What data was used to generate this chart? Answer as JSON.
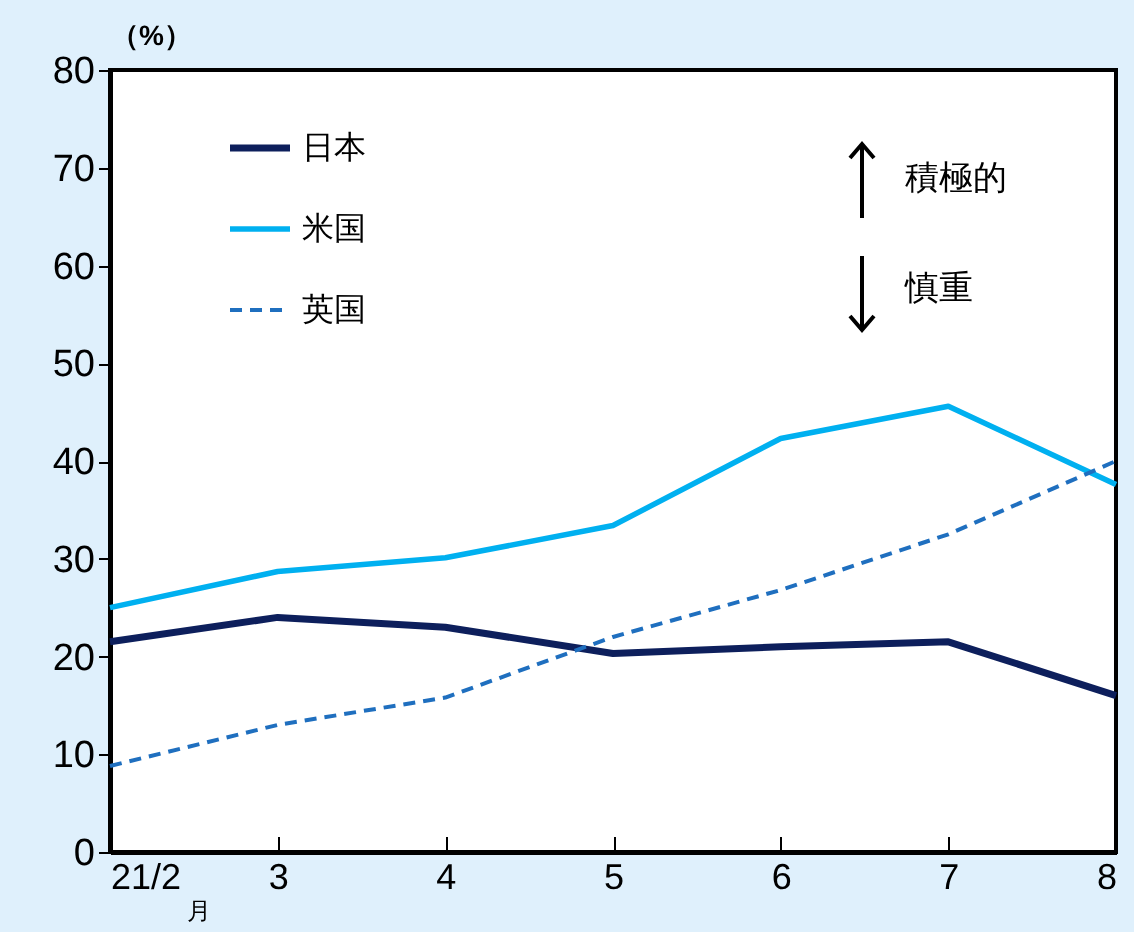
{
  "chart_data": {
    "type": "line",
    "ylabel": "（%）",
    "xlabel": "月",
    "categories": [
      "21/2",
      "3",
      "4",
      "5",
      "6",
      "7",
      "8"
    ],
    "series": [
      {
        "name": "日本",
        "color": "#0d1f5c",
        "line_style": "solid",
        "values": [
          21.5,
          24,
          23,
          20.3,
          21,
          21.5,
          16
        ]
      },
      {
        "name": "米国",
        "color": "#00b0f0",
        "line_style": "solid",
        "values": [
          25,
          28.7,
          30.1,
          33.4,
          42.3,
          45.6,
          37.6
        ]
      },
      {
        "name": "英国",
        "color": "#1f6fbf",
        "line_style": "dashed",
        "values": [
          8.8,
          13,
          15.8,
          22,
          26.8,
          32.5,
          40
        ]
      }
    ],
    "ylim": [
      0,
      80
    ],
    "yticks": [
      0,
      10,
      20,
      30,
      40,
      50,
      60,
      70,
      80
    ],
    "annotations": [
      "積極的",
      "慎重"
    ],
    "grid": false,
    "legend": "top left",
    "marker": "none"
  }
}
